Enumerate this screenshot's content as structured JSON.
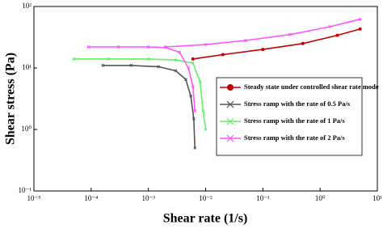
{
  "chart_data": {
    "type": "line",
    "x_label": "Shear rate (1/s)",
    "y_label": "Shear stress (Pa)",
    "xscale": "log",
    "yscale": "log",
    "xlim": [
      1e-05,
      10
    ],
    "ylim": [
      0.1,
      100
    ],
    "xticks": [
      {
        "value": 1e-05,
        "label": "10⁻⁵"
      },
      {
        "value": 0.0001,
        "label": "10⁻⁴"
      },
      {
        "value": 0.001,
        "label": "10⁻³"
      },
      {
        "value": 0.01,
        "label": "10⁻²"
      },
      {
        "value": 0.1,
        "label": "10⁻¹"
      },
      {
        "value": 1,
        "label": "10⁰"
      },
      {
        "value": 10,
        "label": "10¹"
      }
    ],
    "yticks": [
      {
        "value": 0.1,
        "label": "10⁻¹"
      },
      {
        "value": 1,
        "label": "10⁰"
      },
      {
        "value": 10,
        "label": "10¹"
      },
      {
        "value": 100,
        "label": "10²"
      }
    ],
    "legend": "right",
    "series": [
      {
        "name": "Steady state under controlled shear rate mode",
        "color": "#c00000",
        "marker": "circle",
        "x": [
          0.006,
          0.02,
          0.1,
          0.5,
          2,
          5
        ],
        "values": [
          14,
          16.5,
          20,
          25,
          34,
          43
        ]
      },
      {
        "name": "Stress ramp with the rate of 0.5 Pa/s",
        "color": "#555555",
        "marker": "x",
        "x": [
          0.00016,
          0.0005,
          0.0015,
          0.003,
          0.0045,
          0.0055,
          0.0062,
          0.0065
        ],
        "values": [
          11,
          11,
          10.5,
          9,
          6.5,
          3.5,
          1.5,
          0.5
        ]
      },
      {
        "name": "Stress ramp with the rate of 1 Pa/s",
        "color": "#66ee66",
        "marker": "x",
        "x": [
          5e-05,
          0.0002,
          0.001,
          0.003,
          0.006,
          0.008,
          0.009,
          0.01
        ],
        "values": [
          14,
          14,
          14,
          13.5,
          12,
          6,
          2,
          1
        ]
      },
      {
        "name": "Stress ramp with the rate of 2 Pa/s",
        "color": "#ff55ff",
        "marker": "x",
        "x": [
          9e-05,
          0.0003,
          0.001,
          0.002,
          0.0035,
          0.005,
          0.006,
          0.0065,
          null,
          0.002,
          0.01,
          0.05,
          0.3,
          1.5,
          5
        ],
        "values": [
          22,
          22,
          22,
          21.5,
          18,
          10,
          5,
          2,
          null,
          22,
          24,
          28,
          35,
          47,
          62
        ]
      }
    ]
  }
}
